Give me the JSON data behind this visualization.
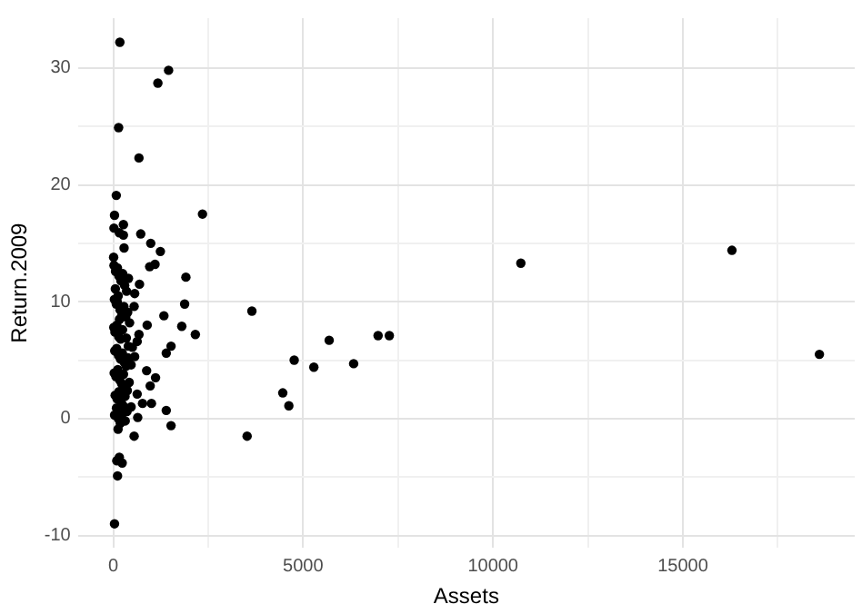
{
  "chart_data": {
    "type": "scatter",
    "xlabel": "Assets",
    "ylabel": "Return.2009",
    "xlim": [
      -930,
      19525
    ],
    "ylim": [
      -11.06,
      34.26
    ],
    "xticks": [
      0,
      {
        "value": 2500,
        "label": null
      },
      5000,
      {
        "value": 7500,
        "label": null
      },
      10000,
      {
        "value": 12500,
        "label": null
      },
      15000,
      {
        "value": 17500,
        "label": null
      }
    ],
    "yticks": [
      -10,
      {
        "value": -5,
        "label": null
      },
      0,
      {
        "value": 5,
        "label": null
      },
      10,
      {
        "value": 15,
        "label": null
      },
      20,
      {
        "value": 25,
        "label": null
      },
      30
    ],
    "grid": true,
    "legend": false,
    "marker": "circle",
    "series": [
      {
        "color": "#000000",
        "x": [
          4464,
          4624,
          4765,
          5282,
          5686,
          6330,
          6974,
          7270,
          10733,
          16292,
          18595,
          3651,
          3525,
          2162,
          1913,
          1880,
          1804,
          1522,
          1396,
          1334,
          893,
          1114,
          973,
          879,
          630,
          771,
          1006,
          1396,
          1522,
          550,
          644,
          470,
          315,
          127,
          160,
          235,
          94,
          113,
          33,
          174,
          1457,
          1175,
          141,
          677,
          80,
          2350,
          33,
          19,
          268,
          160,
          268,
          724,
          987,
          1241,
          1100,
          959,
          691,
          564,
          550,
          677,
          630,
          503,
          564,
          470,
          20,
          60,
          110,
          150,
          200,
          250,
          300,
          350,
          400,
          30,
          80,
          130,
          180,
          230,
          280,
          330,
          380,
          430,
          15,
          45,
          95,
          145,
          195,
          245,
          345,
          395,
          40,
          90,
          140,
          190,
          240,
          290,
          340,
          390,
          25,
          70,
          120,
          170,
          220,
          270,
          320,
          370,
          420,
          50,
          100,
          150,
          210,
          260,
          310,
          360,
          35,
          85,
          135,
          185,
          235,
          285,
          10,
          55,
          105,
          165
        ],
        "values": [
          2.2,
          1.1,
          5.0,
          4.4,
          6.7,
          4.7,
          7.1,
          7.1,
          13.3,
          14.4,
          5.5,
          9.2,
          -1.5,
          7.2,
          12.1,
          9.8,
          7.9,
          6.2,
          5.6,
          8.8,
          8.0,
          3.5,
          2.8,
          4.1,
          2.1,
          1.3,
          1.3,
          0.7,
          -0.6,
          -1.5,
          0.1,
          1.0,
          -0.2,
          -0.9,
          -3.3,
          -3.8,
          -3.6,
          -4.9,
          -9.0,
          32.2,
          29.8,
          28.7,
          24.9,
          22.3,
          19.1,
          17.5,
          17.4,
          16.3,
          16.6,
          15.9,
          15.7,
          15.8,
          15.0,
          14.3,
          13.2,
          13.0,
          11.5,
          10.7,
          9.6,
          7.2,
          6.6,
          6.1,
          5.3,
          4.6,
          13.1,
          12.6,
          12.9,
          12.2,
          11.8,
          12.4,
          11.4,
          10.9,
          12.0,
          10.2,
          9.8,
          10.5,
          9.3,
          8.9,
          9.6,
          8.7,
          9.1,
          8.2,
          7.8,
          7.4,
          8.0,
          7.0,
          6.8,
          7.6,
          6.9,
          6.2,
          5.8,
          6.0,
          5.4,
          5.1,
          5.6,
          4.8,
          4.5,
          5.2,
          3.9,
          3.6,
          4.2,
          3.3,
          3.0,
          3.8,
          2.7,
          2.4,
          3.1,
          2.0,
          1.7,
          2.3,
          1.4,
          1.1,
          1.9,
          0.6,
          0.3,
          0.9,
          0.0,
          -0.4,
          0.4,
          14.6,
          13.8,
          11.1,
          10.0,
          8.5
        ]
      }
    ]
  }
}
